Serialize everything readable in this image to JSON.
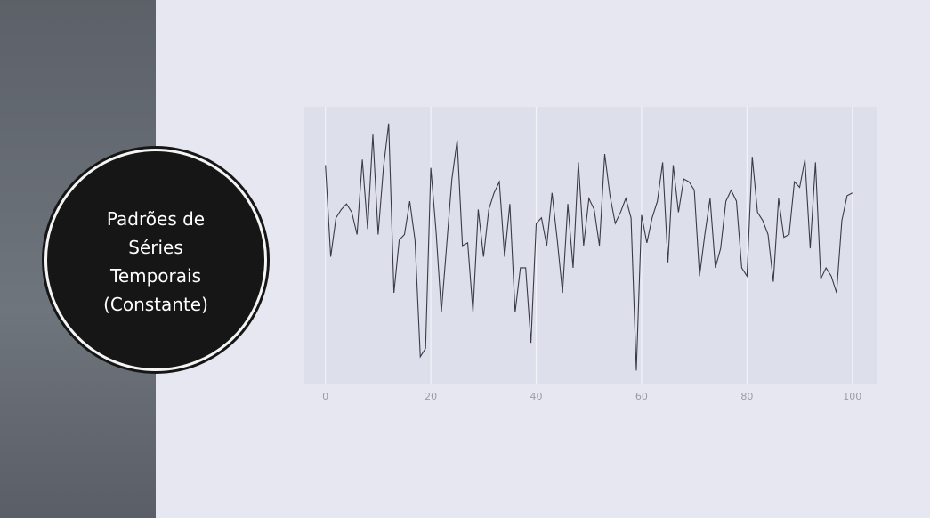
{
  "chart_data": {
    "type": "line",
    "title": "Padrões de Séries Temporais (Constante)",
    "x": [
      0,
      1,
      2,
      3,
      4,
      5,
      6,
      7,
      8,
      9,
      10,
      11,
      12,
      13,
      14,
      15,
      16,
      17,
      18,
      19,
      20,
      21,
      22,
      23,
      24,
      25,
      26,
      27,
      28,
      29,
      30,
      31,
      32,
      33,
      34,
      35,
      36,
      37,
      38,
      39,
      40,
      41,
      42,
      43,
      44,
      45,
      46,
      47,
      48,
      49,
      50,
      51,
      52,
      53,
      54,
      55,
      56,
      57,
      58,
      59,
      60,
      61,
      62,
      63,
      64,
      65,
      66,
      67,
      68,
      69,
      70,
      71,
      72,
      73,
      74,
      75,
      76,
      77,
      78,
      79,
      80,
      81,
      82,
      83,
      84,
      85,
      86,
      87,
      88,
      89,
      90,
      91,
      92,
      93,
      94,
      95,
      96,
      97,
      98,
      99,
      100
    ],
    "series": [
      {
        "color": "#3a3a48",
        "values": [
          7.9,
          4.6,
          6.0,
          6.3,
          6.5,
          6.2,
          5.4,
          8.1,
          5.6,
          9.0,
          5.4,
          7.8,
          9.4,
          3.3,
          5.2,
          5.4,
          6.6,
          5.2,
          1.0,
          1.3,
          7.8,
          5.5,
          2.6,
          5.0,
          7.4,
          8.8,
          5.0,
          5.1,
          2.6,
          6.3,
          4.6,
          6.3,
          6.9,
          7.3,
          4.6,
          6.5,
          2.6,
          4.2,
          4.2,
          1.5,
          5.8,
          6.0,
          5.0,
          6.9,
          5.2,
          3.3,
          6.5,
          4.2,
          8.0,
          5.0,
          6.7,
          6.3,
          5.0,
          8.3,
          6.8,
          5.8,
          6.2,
          6.7,
          6.0,
          0.5,
          6.1,
          5.1,
          6.0,
          6.6,
          8.0,
          4.4,
          7.9,
          6.2,
          7.4,
          7.3,
          7.0,
          3.9,
          5.4,
          6.7,
          4.2,
          4.9,
          6.6,
          7.0,
          6.6,
          4.2,
          3.9,
          8.2,
          6.2,
          5.9,
          5.4,
          3.7,
          6.7,
          5.3,
          5.4,
          7.3,
          7.1,
          8.1,
          4.9,
          8.0,
          3.8,
          4.2,
          3.9,
          3.3,
          5.9,
          6.8,
          6.9
        ]
      }
    ],
    "xlim": [
      -4,
      104.6
    ],
    "ylim": [
      0,
      10
    ],
    "xticks": [
      0,
      20,
      40,
      60,
      80,
      100
    ],
    "grid": true
  }
}
